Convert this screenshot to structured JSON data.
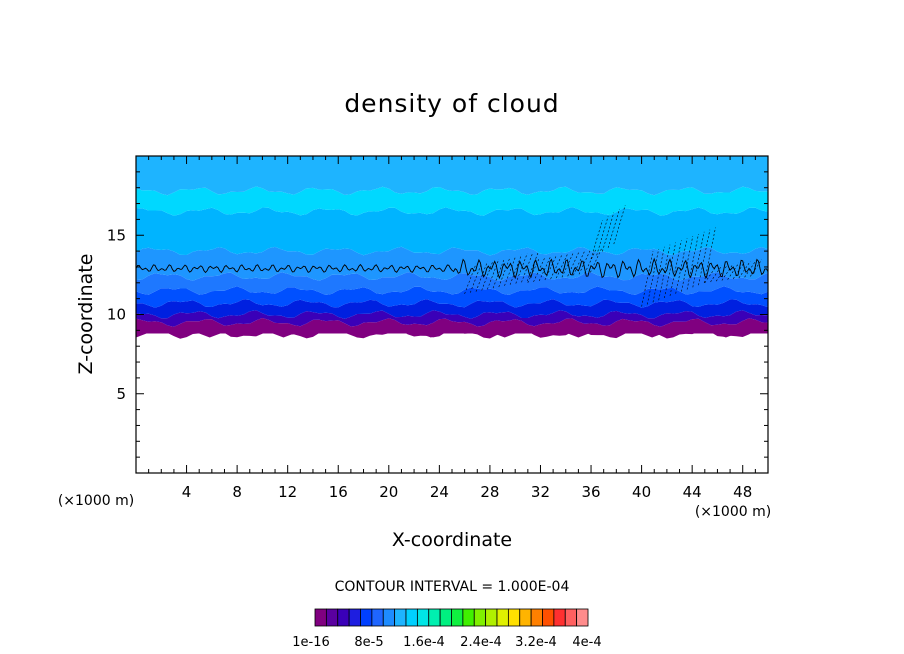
{
  "chart_data": {
    "type": "heatmap",
    "title": "density of cloud",
    "xlabel": "X-coordinate",
    "ylabel": "Z-coordinate",
    "x_unit": "(×1000 m)",
    "y_unit": "(×1000 m)",
    "xlim": [
      0,
      50
    ],
    "ylim": [
      0,
      20
    ],
    "x_ticks": [
      4,
      8,
      12,
      16,
      20,
      24,
      28,
      32,
      36,
      40,
      44,
      48
    ],
    "y_ticks": [
      5,
      10,
      15
    ],
    "contour_interval": "CONTOUR INTERVAL = 1.000E-04",
    "colorbar_labels": [
      "1e-16",
      "8e-5",
      "1.6e-4",
      "2.4e-4",
      "3.2e-4",
      "4e-4"
    ],
    "colorbar_colors": [
      "#800080",
      "#5a00a0",
      "#3a00b8",
      "#1e1ee0",
      "#0040ff",
      "#1f66ff",
      "#1e8cff",
      "#1eb4ff",
      "#00d0ff",
      "#00e6e6",
      "#00f0b0",
      "#00f080",
      "#10f040",
      "#40f000",
      "#80f000",
      "#b0f000",
      "#e0f000",
      "#ffe000",
      "#ffb400",
      "#ff8000",
      "#ff5000",
      "#ff3030",
      "#ff6060",
      "#ff8c8c"
    ],
    "band_levels": [
      {
        "z_bottom": 9.0,
        "z_top": 9.5,
        "color": "#800080"
      },
      {
        "z_bottom": 9.5,
        "z_top": 10.0,
        "color": "#3a00b8"
      },
      {
        "z_bottom": 10.0,
        "z_top": 10.7,
        "color": "#0020e0"
      },
      {
        "z_bottom": 10.7,
        "z_top": 11.5,
        "color": "#0050ff"
      },
      {
        "z_bottom": 11.5,
        "z_top": 12.4,
        "color": "#1e78ff"
      },
      {
        "z_bottom": 12.4,
        "z_top": 14.0,
        "color": "#1e96ff"
      },
      {
        "z_bottom": 14.0,
        "z_top": 16.5,
        "color": "#00b4ff"
      },
      {
        "z_bottom": 16.5,
        "z_top": 17.8,
        "color": "#00d8ff"
      },
      {
        "z_bottom": 17.8,
        "z_top": 20.0,
        "color": "#1eb4ff"
      }
    ],
    "contour_line_z": 12.9,
    "cloud_base_z": 8.8
  }
}
